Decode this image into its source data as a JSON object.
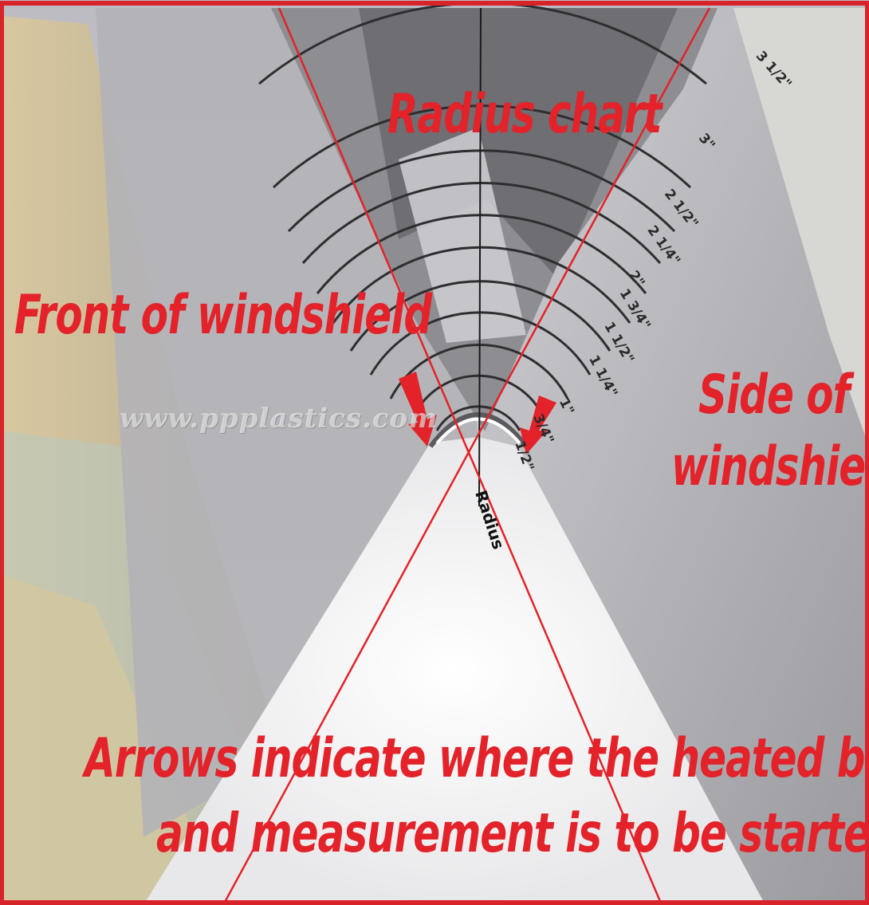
{
  "labels": {
    "title": "Radius chart",
    "front": "Front of windshield",
    "side_line1": "Side of",
    "side_line2": "windshield",
    "caption_line1": "Arrows indicate where the heated bend ends,",
    "caption_line2": "and measurement is to be started!",
    "watermark": "www.ppplastics.com",
    "radius_word": "Radius"
  },
  "radius_ticks": [
    "1/2\"",
    "3/4\"",
    "1\"",
    "1 1/4\"",
    "1 1/2\"",
    "1 3/4\"",
    "2\"",
    "2 1/4\"",
    "2 1/2\"",
    "3\"",
    "3 1/2\""
  ],
  "colors": {
    "annotation_red": "#e32229",
    "frame_red": "#d8232a",
    "chart_gray": "#c4c4c8",
    "dark_gray": "#7a7a7e",
    "light_panel": "#fbfbfb",
    "tan_box": "#d9c9a3"
  }
}
